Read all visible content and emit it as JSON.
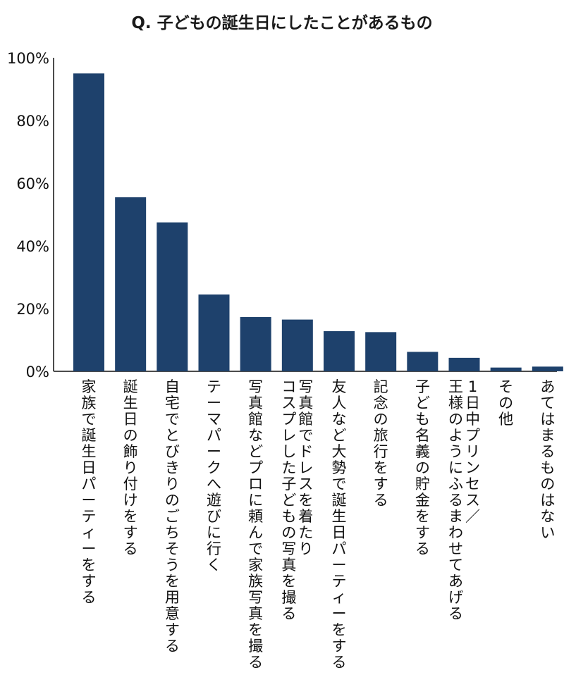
{
  "chart_data": {
    "type": "bar",
    "title": "Q. 子どもの誕生日にしたことがあるもの",
    "xlabel": "",
    "ylabel": "",
    "ylim": [
      0,
      100
    ],
    "yticks": [
      0,
      20,
      40,
      60,
      80,
      100
    ],
    "ytick_labels": [
      "0%",
      "20%",
      "40%",
      "60%",
      "80%",
      "100%"
    ],
    "grid": false,
    "bar_color": "#1e416c",
    "categories": [
      [
        "家族で誕生日パーティーをする"
      ],
      [
        "誕生日の飾り付けをする"
      ],
      [
        "自宅でとびきりのごちそうを用意する"
      ],
      [
        "テーマパークへ遊びに行く"
      ],
      [
        "写真館などプロに頼んで家族写真を撮る"
      ],
      [
        "写真館でドレスを着たり",
        "コスプレした子どもの写真を撮る"
      ],
      [
        "友人など大勢で誕生日パーティーをする"
      ],
      [
        "記念の旅行をする"
      ],
      [
        "子ども名義の貯金をする"
      ],
      [
        "1日中プリンセス／",
        "王様のようにふるまわせてあげる"
      ],
      [
        "その他"
      ],
      [
        "あてはまるものはない"
      ]
    ],
    "values": [
      95,
      55.5,
      47.5,
      24.5,
      17.3,
      16.5,
      12.8,
      12.5,
      6.2,
      4.3,
      1.2,
      1.5
    ]
  }
}
